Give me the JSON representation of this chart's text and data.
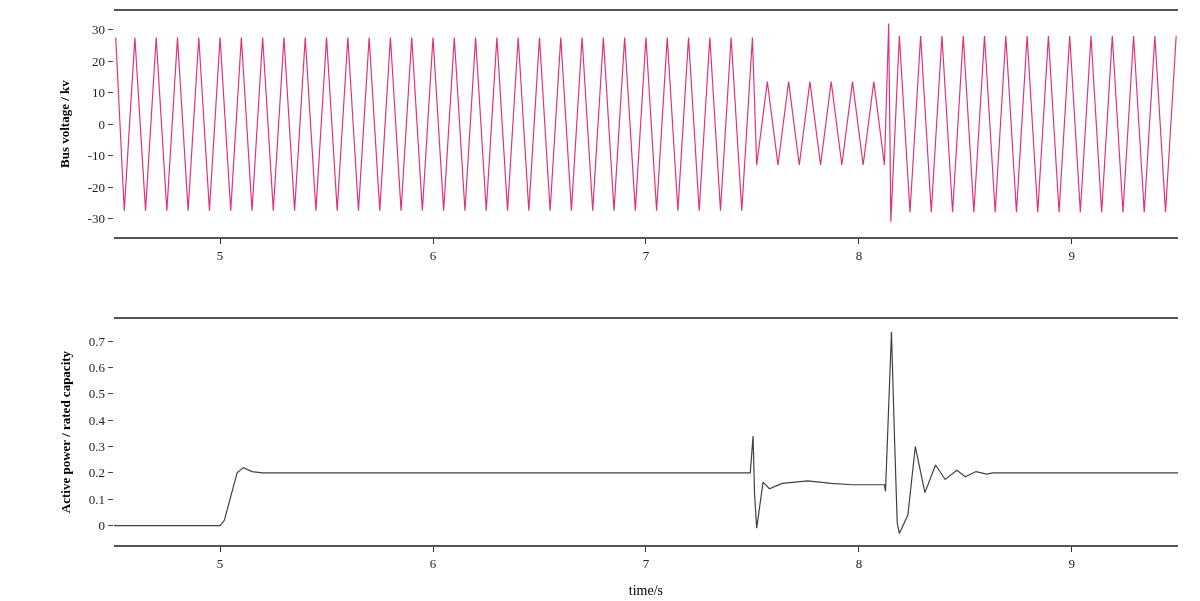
{
  "chart_data": [
    {
      "type": "line",
      "ylabel": "Bus voltage / kv",
      "xlim": [
        4.5,
        9.5
      ],
      "xticks": [
        5,
        6,
        7,
        8,
        9
      ],
      "ylim": [
        -36,
        36
      ],
      "yticks": [
        -30,
        -20,
        -10,
        0,
        10,
        20,
        30
      ],
      "marker": "none",
      "line_style": "solid",
      "series": [
        {
          "color": "#e0347a",
          "x": [
            4.51,
            4.55,
            4.6,
            4.65,
            4.7,
            4.75,
            4.8,
            4.85,
            4.9,
            4.95,
            5,
            5.05,
            5.1,
            5.15,
            5.2,
            5.25,
            5.3,
            5.35,
            5.4,
            5.45,
            5.5,
            5.55,
            5.6,
            5.65,
            5.7,
            5.75,
            5.8,
            5.85,
            5.9,
            5.95,
            6,
            6.05,
            6.1,
            6.15,
            6.2,
            6.25,
            6.3,
            6.35,
            6.4,
            6.45,
            6.5,
            6.55,
            6.6,
            6.65,
            6.7,
            6.75,
            6.8,
            6.85,
            6.9,
            6.95,
            7,
            7.05,
            7.1,
            7.15,
            7.2,
            7.25,
            7.3,
            7.35,
            7.4,
            7.45,
            7.5,
            7.52,
            7.57,
            7.62,
            7.67,
            7.72,
            7.77,
            7.82,
            7.87,
            7.92,
            7.97,
            8.02,
            8.07,
            8.12,
            8.14,
            8.15,
            8.19,
            8.24,
            8.29,
            8.34,
            8.39,
            8.44,
            8.49,
            8.54,
            8.59,
            8.64,
            8.69,
            8.74,
            8.79,
            8.84,
            8.89,
            8.94,
            8.99,
            9.04,
            9.09,
            9.14,
            9.19,
            9.24,
            9.29,
            9.34,
            9.39,
            9.44,
            9.49
          ],
          "values": [
            27.5,
            -27.5,
            27.5,
            -27.5,
            27.5,
            -27.5,
            27.5,
            -27.5,
            27.5,
            -27.5,
            27.5,
            -27.5,
            27.5,
            -27.5,
            27.5,
            -27.5,
            27.5,
            -27.5,
            27.5,
            -27.5,
            27.5,
            -27.5,
            27.5,
            -27.5,
            27.5,
            -27.5,
            27.5,
            -27.5,
            27.5,
            -27.5,
            27.5,
            -27.5,
            27.5,
            -27.5,
            27.5,
            -27.5,
            27.5,
            -27.5,
            27.5,
            -27.5,
            27.5,
            -27.5,
            27.5,
            -27.5,
            27.5,
            -27.5,
            27.5,
            -27.5,
            27.5,
            -27.5,
            27.5,
            -27.5,
            27.5,
            -27.5,
            27.5,
            -27.5,
            27.5,
            -27.5,
            27.5,
            -27.5,
            27.5,
            -13,
            13.5,
            -13,
            13.5,
            -13,
            13.5,
            -13,
            13.5,
            -13,
            13.5,
            -13,
            13.5,
            -13,
            32,
            -31,
            28,
            -28,
            28,
            -28,
            28,
            -28,
            28,
            -28,
            28,
            -28,
            28,
            -28,
            28,
            -28,
            28,
            -28,
            28,
            -28,
            28,
            -28,
            28,
            -28,
            28,
            -28,
            28,
            -28,
            28
          ]
        }
      ]
    },
    {
      "type": "line",
      "ylabel": "Active power / rated capacity",
      "xlabel": "time/s",
      "xlim": [
        4.5,
        9.5
      ],
      "xticks": [
        5,
        6,
        7,
        8,
        9
      ],
      "ylim": [
        -0.075,
        0.785
      ],
      "yticks": [
        0,
        0.1,
        0.2,
        0.3,
        0.4,
        0.5,
        0.6,
        0.7
      ],
      "marker": "none",
      "line_style": "solid",
      "series": [
        {
          "color": "#404040",
          "x": [
            4.5,
            5.0,
            5.02,
            5.08,
            5.11,
            5.15,
            5.2,
            7.49,
            7.503,
            7.51,
            7.52,
            7.55,
            7.58,
            7.64,
            7.76,
            7.87,
            7.97,
            8.12,
            8.125,
            8.153,
            8.167,
            8.18,
            8.19,
            8.23,
            8.265,
            8.31,
            8.36,
            8.405,
            8.46,
            8.5,
            8.55,
            8.6,
            8.63,
            9.5
          ],
          "values": [
            0,
            0,
            0.02,
            0.2,
            0.22,
            0.205,
            0.2,
            0.2,
            0.34,
            0.12,
            -0.01,
            0.165,
            0.14,
            0.16,
            0.17,
            0.16,
            0.155,
            0.155,
            0.13,
            0.735,
            0.34,
            0.01,
            -0.03,
            0.04,
            0.3,
            0.125,
            0.23,
            0.175,
            0.21,
            0.185,
            0.205,
            0.195,
            0.2,
            0.2
          ]
        }
      ]
    }
  ]
}
